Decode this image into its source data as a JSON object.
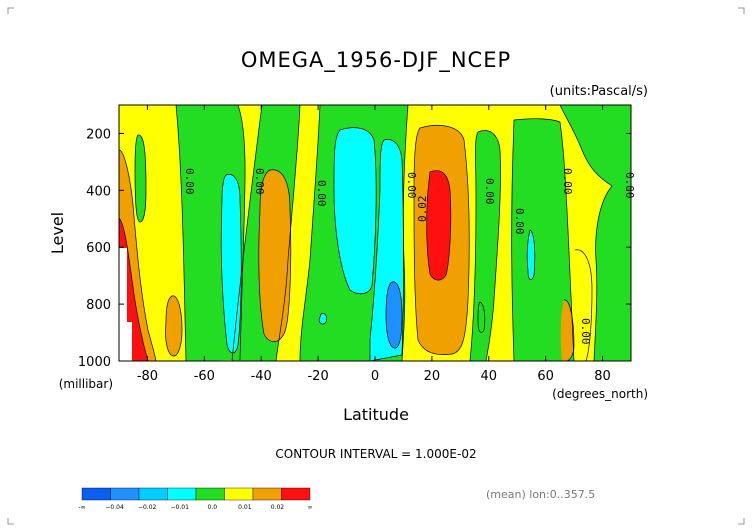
{
  "chart_data": {
    "type": "contour",
    "title": "OMEGA_1956-DJF_NCEP",
    "units": "(units:Pascal/s)",
    "ylabel": "Level",
    "yunit": "(millibar)",
    "xlabel": "Latitude",
    "xunit": "(degrees_north)",
    "xlim": [
      -90,
      90
    ],
    "ylim": [
      1000,
      100
    ],
    "xticks": [
      -80,
      -60,
      -40,
      -20,
      0,
      20,
      40,
      60,
      80
    ],
    "yticks": [
      200,
      400,
      600,
      800,
      1000
    ],
    "contour_interval_text": "CONTOUR INTERVAL = 1.000E-02",
    "contour_label": "0.00",
    "contour_label_b": "0.02",
    "meta_text": "(mean) lon:0..357.5",
    "colorbar": {
      "labels": [
        "-∞",
        "−0.04",
        "−0.02",
        "−0.01",
        "0.0",
        "0.01",
        "0.02",
        "∞"
      ],
      "colors": [
        "#0a5ff0",
        "#1e90ff",
        "#00cdff",
        "#00ffff",
        "#22dd22",
        "#ffff00",
        "#f0a000",
        "#ff1010"
      ]
    },
    "colors": {
      "white": "#ffffff",
      "green": "#22dd22",
      "yellow": "#ffff00",
      "orange": "#f0a000",
      "red": "#ff1010",
      "cyan": "#00ffff",
      "lightblue": "#00cdff",
      "blue": "#1e90ff"
    }
  }
}
